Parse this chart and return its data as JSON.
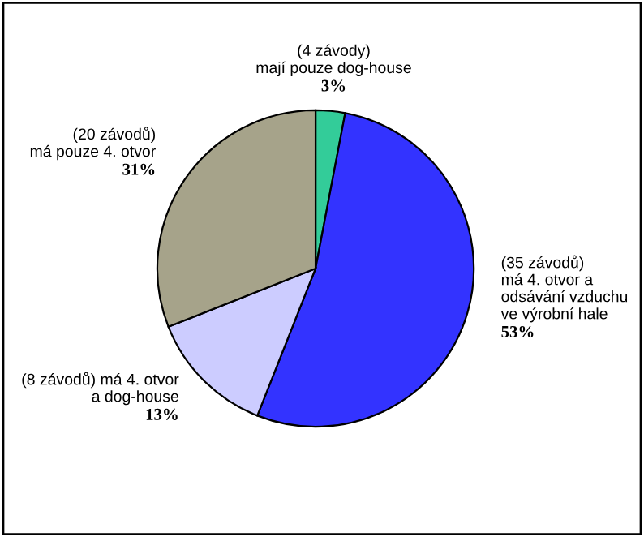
{
  "chart_data": {
    "type": "pie",
    "categories": [
      "(4 závody)\nmají pouze dog-house",
      "(35 závodů)\nmá 4. otvor a\nodsávání vzduchu\nve výrobní hale",
      "(8 závodů) má 4. otvor\na dog-house",
      "(20 závodů)\nmá pouze 4. otvor"
    ],
    "values": [
      3,
      53,
      13,
      31
    ],
    "colors": [
      "#33cc99",
      "#3333ff",
      "#ccccff",
      "#a6a38a"
    ],
    "value_labels": [
      "3%",
      "53%",
      "13%",
      "31%"
    ],
    "legend": false
  }
}
